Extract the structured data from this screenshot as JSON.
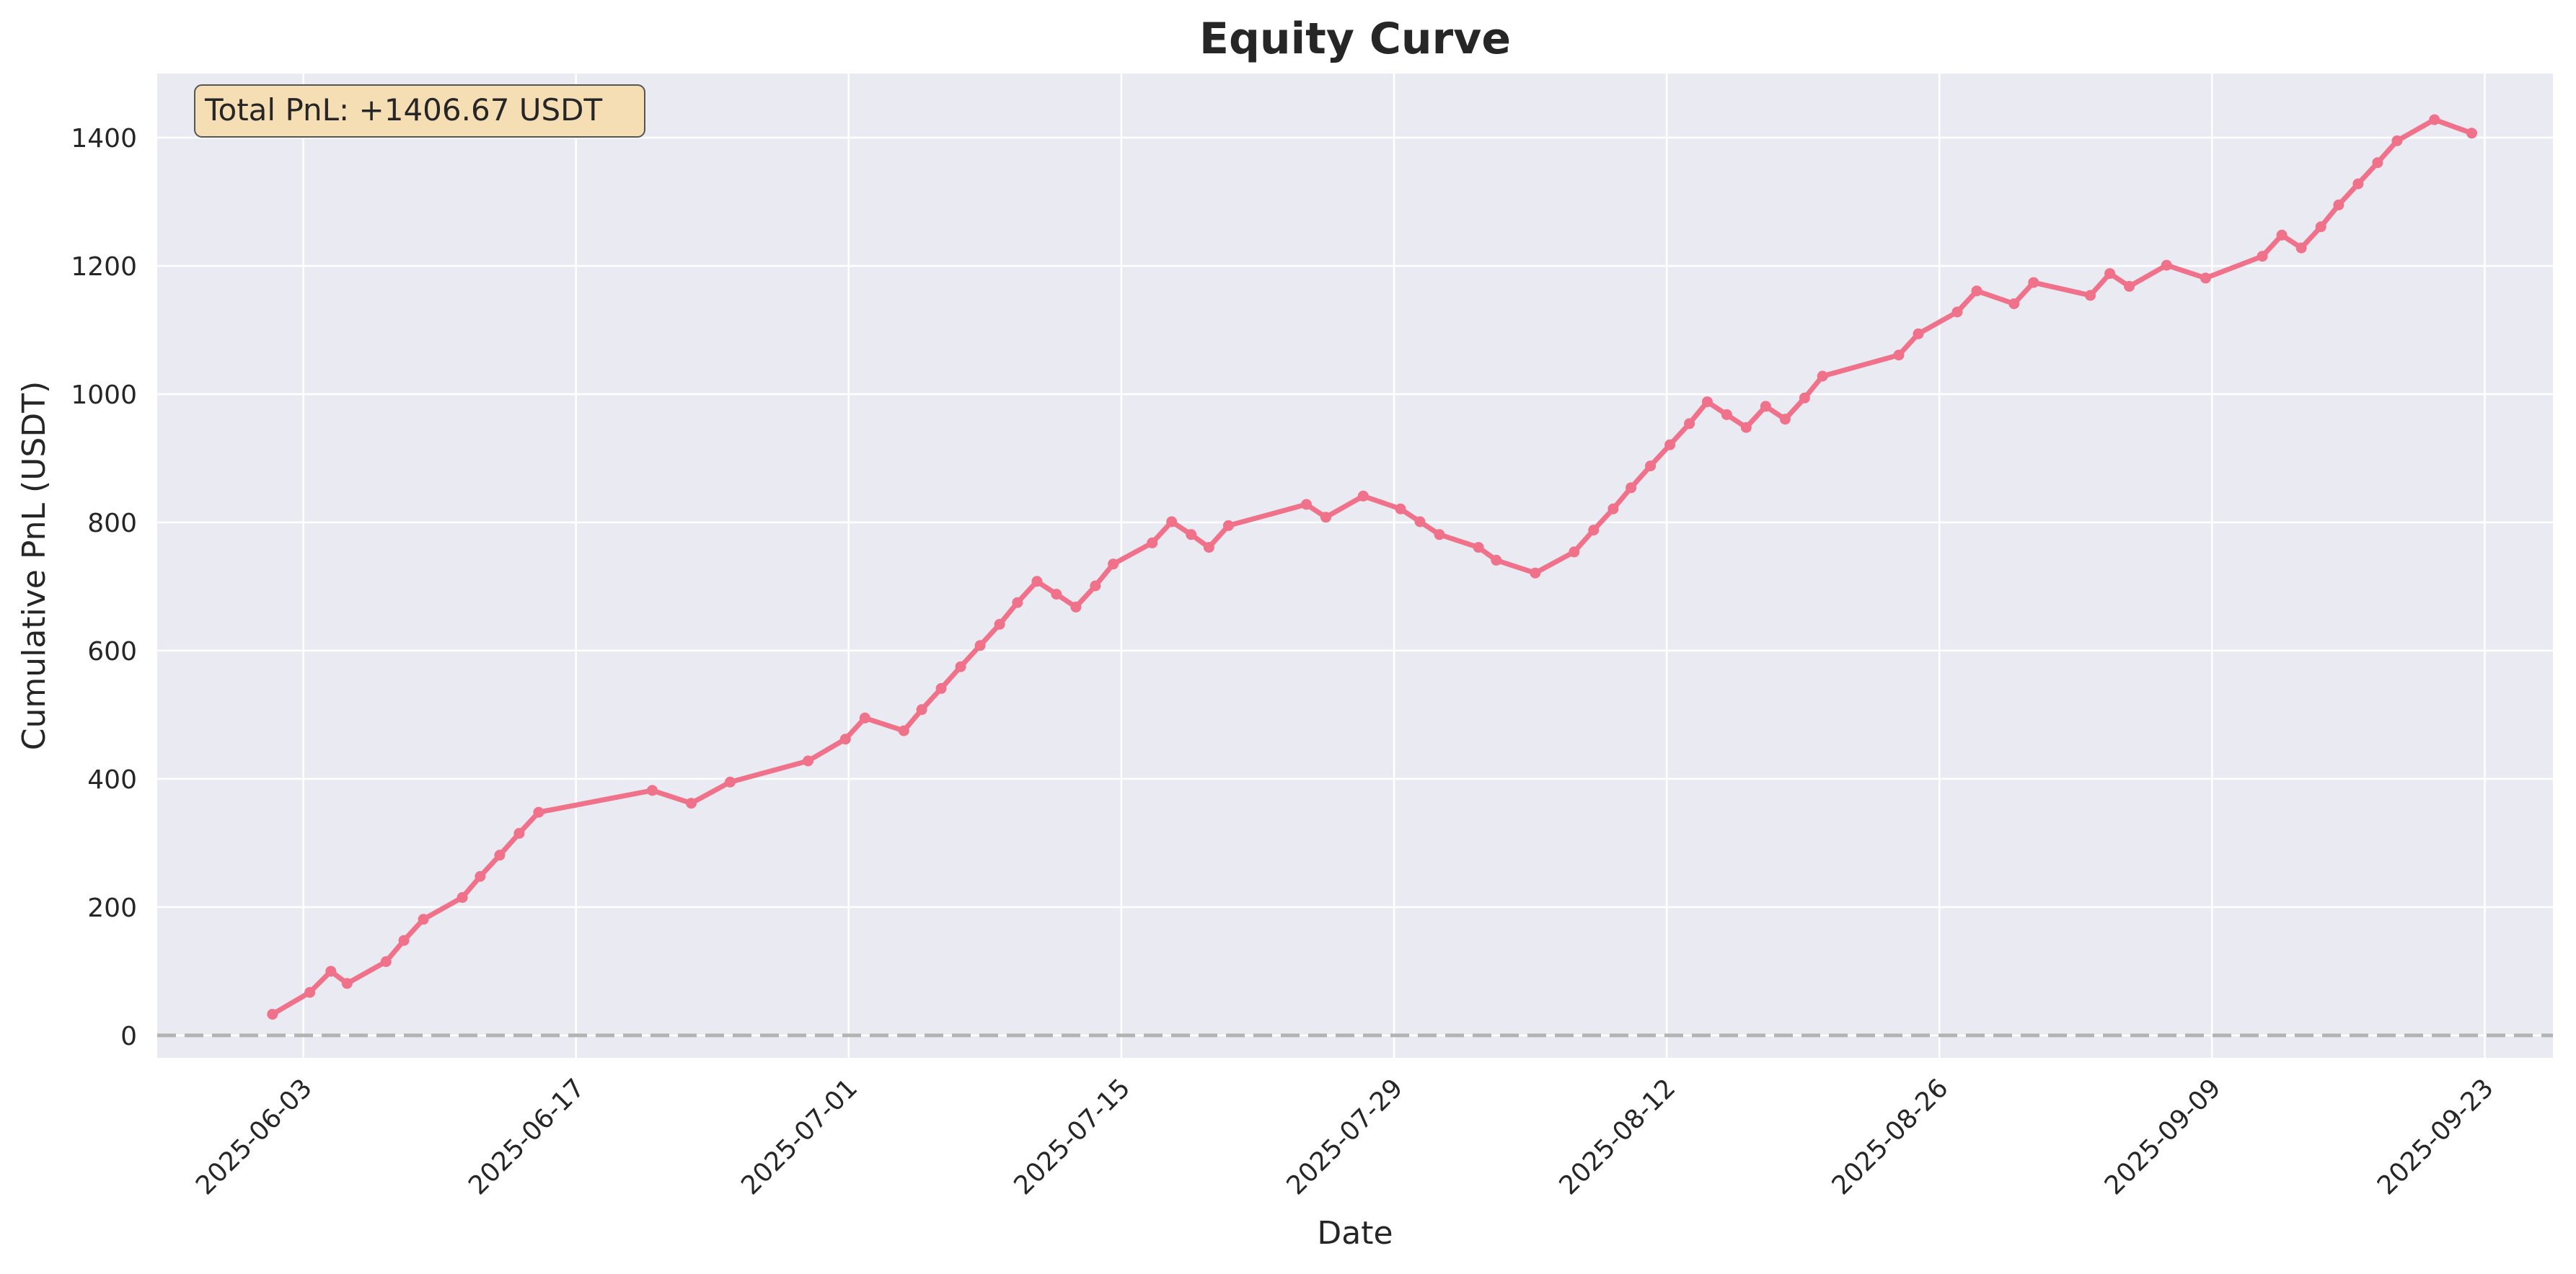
{
  "chart_data": {
    "type": "line",
    "title": "Equity Curve",
    "xlabel": "Date",
    "ylabel": "Cumulative PnL (USDT)",
    "x_range": [
      "2025-05-26T12:00",
      "2025-09-26T12:00"
    ],
    "ylim": [
      -35,
      1500
    ],
    "yticks": [
      0,
      200,
      400,
      600,
      800,
      1000,
      1200,
      1400
    ],
    "xticks": [
      "2025-06-03",
      "2025-06-17",
      "2025-07-01",
      "2025-07-15",
      "2025-07-29",
      "2025-08-12",
      "2025-08-26",
      "2025-09-09",
      "2025-09-23"
    ],
    "grid": true,
    "reference_line": {
      "y": 0,
      "style": "dashed"
    },
    "annotation": {
      "text": "Total PnL: +1406.67 USDT",
      "placement": "top-left"
    },
    "series": [
      {
        "name": "Cumulative PnL",
        "color": "#f0718a",
        "points": [
          [
            "2025-06-01T10:00",
            33
          ],
          [
            "2025-06-03T08:00",
            67
          ],
          [
            "2025-06-04T10:00",
            100
          ],
          [
            "2025-06-05T06:00",
            81
          ],
          [
            "2025-06-07T06:00",
            115
          ],
          [
            "2025-06-08T04:00",
            148
          ],
          [
            "2025-06-09T04:00",
            181
          ],
          [
            "2025-06-11T04:00",
            215
          ],
          [
            "2025-06-12T02:00",
            248
          ],
          [
            "2025-06-13T02:00",
            281
          ],
          [
            "2025-06-14T02:00",
            315
          ],
          [
            "2025-06-15T02:00",
            348
          ],
          [
            "2025-06-20T22:00",
            382
          ],
          [
            "2025-06-22T22:00",
            362
          ],
          [
            "2025-06-24T22:00",
            395
          ],
          [
            "2025-06-28T22:00",
            428
          ],
          [
            "2025-06-30T20:00",
            462
          ],
          [
            "2025-07-01T20:00",
            495
          ],
          [
            "2025-07-03T20:00",
            475
          ],
          [
            "2025-07-04T18:00",
            508
          ],
          [
            "2025-07-05T18:00",
            541
          ],
          [
            "2025-07-06T18:00",
            575
          ],
          [
            "2025-07-07T18:00",
            608
          ],
          [
            "2025-07-08T18:00",
            641
          ],
          [
            "2025-07-09T16:00",
            675
          ],
          [
            "2025-07-10T16:00",
            708
          ],
          [
            "2025-07-11T16:00",
            688
          ],
          [
            "2025-07-12T16:00",
            668
          ],
          [
            "2025-07-13T16:00",
            701
          ],
          [
            "2025-07-14T14:00",
            735
          ],
          [
            "2025-07-16T14:00",
            768
          ],
          [
            "2025-07-17T14:00",
            801
          ],
          [
            "2025-07-18T14:00",
            781
          ],
          [
            "2025-07-19T12:00",
            761
          ],
          [
            "2025-07-20T12:00",
            795
          ],
          [
            "2025-07-24T12:00",
            828
          ],
          [
            "2025-07-25T12:00",
            808
          ],
          [
            "2025-07-27T10:00",
            841
          ],
          [
            "2025-07-29T08:00",
            821
          ],
          [
            "2025-07-30T08:00",
            801
          ],
          [
            "2025-07-31T08:00",
            781
          ],
          [
            "2025-08-02T08:00",
            761
          ],
          [
            "2025-08-03T06:00",
            741
          ],
          [
            "2025-08-05T06:00",
            721
          ],
          [
            "2025-08-07T06:00",
            754
          ],
          [
            "2025-08-08T06:00",
            788
          ],
          [
            "2025-08-09T06:00",
            821
          ],
          [
            "2025-08-10T04:00",
            854
          ],
          [
            "2025-08-11T04:00",
            888
          ],
          [
            "2025-08-12T04:00",
            921
          ],
          [
            "2025-08-13T04:00",
            954
          ],
          [
            "2025-08-14T02:00",
            988
          ],
          [
            "2025-08-15T02:00",
            968
          ],
          [
            "2025-08-16T02:00",
            948
          ],
          [
            "2025-08-17T02:00",
            981
          ],
          [
            "2025-08-18T02:00",
            961
          ],
          [
            "2025-08-19T02:00",
            994
          ],
          [
            "2025-08-20T00:00",
            1028
          ],
          [
            "2025-08-23T22:00",
            1061
          ],
          [
            "2025-08-24T22:00",
            1094
          ],
          [
            "2025-08-26T22:00",
            1128
          ],
          [
            "2025-08-27T22:00",
            1161
          ],
          [
            "2025-08-29T20:00",
            1141
          ],
          [
            "2025-08-30T20:00",
            1174
          ],
          [
            "2025-09-02T18:00",
            1154
          ],
          [
            "2025-09-03T18:00",
            1188
          ],
          [
            "2025-09-04T18:00",
            1168
          ],
          [
            "2025-09-06T16:00",
            1201
          ],
          [
            "2025-09-08T16:00",
            1181
          ],
          [
            "2025-09-11T14:00",
            1215
          ],
          [
            "2025-09-12T14:00",
            1248
          ],
          [
            "2025-09-13T14:00",
            1228
          ],
          [
            "2025-09-14T14:00",
            1261
          ],
          [
            "2025-09-15T12:00",
            1295
          ],
          [
            "2025-09-16T12:00",
            1328
          ],
          [
            "2025-09-17T12:00",
            1361
          ],
          [
            "2025-09-18T12:00",
            1395
          ],
          [
            "2025-09-20T10:00",
            1428
          ],
          [
            "2025-09-22T08:00",
            1407
          ]
        ]
      }
    ]
  }
}
